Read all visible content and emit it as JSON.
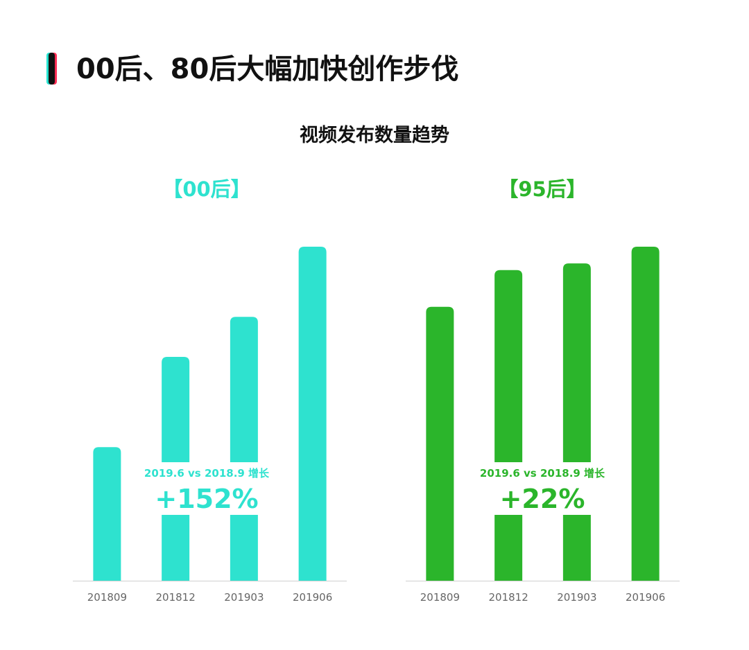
{
  "page_title": "00后、80后大幅加快创作步伐",
  "chart_title": "视频发布数量趋势",
  "chart_data": [
    {
      "type": "bar",
      "title": "【00后】",
      "color": "#2ee2cf",
      "categories": [
        "201809",
        "201812",
        "201903",
        "201906"
      ],
      "values": [
        40,
        67,
        79,
        100
      ],
      "annotation_text": "2019.6 vs 2018.9 增长",
      "annotation_value": "+152%",
      "ylim": [
        0,
        100
      ]
    },
    {
      "type": "bar",
      "title": "【95后】",
      "color": "#2bb52b",
      "categories": [
        "201809",
        "201812",
        "201903",
        "201906"
      ],
      "values": [
        82,
        93,
        95,
        100
      ],
      "annotation_text": "2019.6 vs 2018.9 增长",
      "annotation_value": "+22%",
      "ylim": [
        0,
        100
      ]
    }
  ]
}
